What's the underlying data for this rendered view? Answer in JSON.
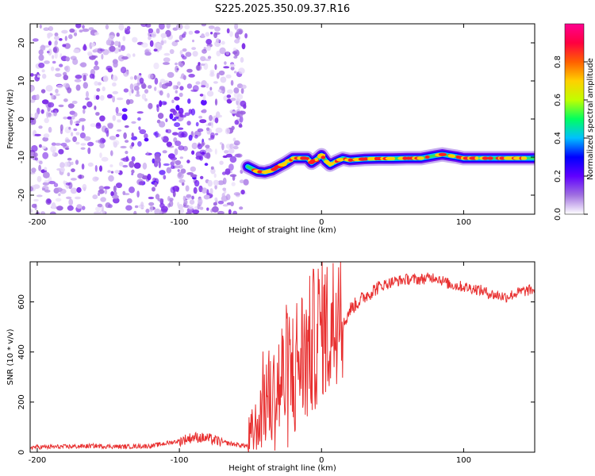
{
  "figure_title": "S225.2025.350.09.37.R16",
  "chart_data": [
    {
      "type": "heatmap",
      "name": "spectrogram",
      "xlabel": "Height of straight line (km)",
      "ylabel": "Frequency (Hz)",
      "xlim": [
        -205,
        150
      ],
      "ylim": [
        -25,
        25
      ],
      "xticks": [
        -200,
        -100,
        0,
        100
      ],
      "yticks": [
        -20,
        -10,
        0,
        10,
        20
      ],
      "colorbar": {
        "label": "Normalized spectral amplitude",
        "range": [
          0,
          1
        ],
        "ticks": [
          "0.0",
          "0.2",
          "0.4",
          "0.6",
          "0.8"
        ],
        "tick_values": [
          0.0,
          0.2,
          0.4,
          0.6,
          0.8
        ],
        "colormap": [
          "#ffffff",
          "#a070e0",
          "#6000ff",
          "#0000ff",
          "#00c0ff",
          "#00ff60",
          "#c0ff00",
          "#ffd000",
          "#ff6000",
          "#ff0040",
          "#ff0090"
        ]
      },
      "noise_region_x": [
        -205,
        -53
      ],
      "signal_ridge": {
        "x": [
          -52,
          -45,
          -40,
          -35,
          -30,
          -25,
          -20,
          -15,
          -10,
          -7,
          -3,
          0,
          3,
          6,
          10,
          15,
          20,
          30,
          40,
          50,
          60,
          70,
          80,
          85,
          90,
          95,
          100,
          110,
          120,
          130,
          140,
          150
        ],
        "y": [
          -12.5,
          -13.8,
          -14,
          -13.5,
          -12.5,
          -11.5,
          -10.3,
          -10.3,
          -10.3,
          -11.5,
          -10.5,
          -9.5,
          -11,
          -12,
          -11.2,
          -10.4,
          -10.8,
          -10.5,
          -10.4,
          -10.4,
          -10.3,
          -10.3,
          -9.6,
          -9.3,
          -9.6,
          -9.9,
          -10.3,
          -10.3,
          -10.3,
          -10.3,
          -10.3,
          -10.3
        ]
      }
    },
    {
      "type": "line",
      "name": "snr",
      "xlabel": "Height of straight line (km)",
      "ylabel": "SNR (10 * v/v)",
      "xlim": [
        -205,
        150
      ],
      "ylim": [
        0,
        760
      ],
      "xticks": [
        -200,
        -100,
        0,
        100
      ],
      "yticks": [
        0,
        200,
        400,
        600
      ],
      "color": "#e83030",
      "series": [
        {
          "name": "SNR",
          "x": [
            -205,
            -180,
            -160,
            -140,
            -120,
            -110,
            -100,
            -90,
            -80,
            -70,
            -60,
            -52,
            -45,
            -40,
            -35,
            -30,
            -25,
            -20,
            -15,
            -10,
            -5,
            0,
            5,
            10,
            13,
            15,
            20,
            30,
            40,
            50,
            60,
            70,
            80,
            90,
            100,
            110,
            120,
            130,
            140,
            150
          ],
          "y": [
            20,
            22,
            25,
            22,
            25,
            35,
            45,
            60,
            55,
            40,
            30,
            25,
            120,
            230,
            200,
            260,
            300,
            310,
            380,
            390,
            450,
            520,
            480,
            530,
            740,
            500,
            570,
            620,
            660,
            680,
            690,
            690,
            700,
            670,
            660,
            650,
            630,
            620,
            640,
            650
          ]
        }
      ]
    }
  ]
}
